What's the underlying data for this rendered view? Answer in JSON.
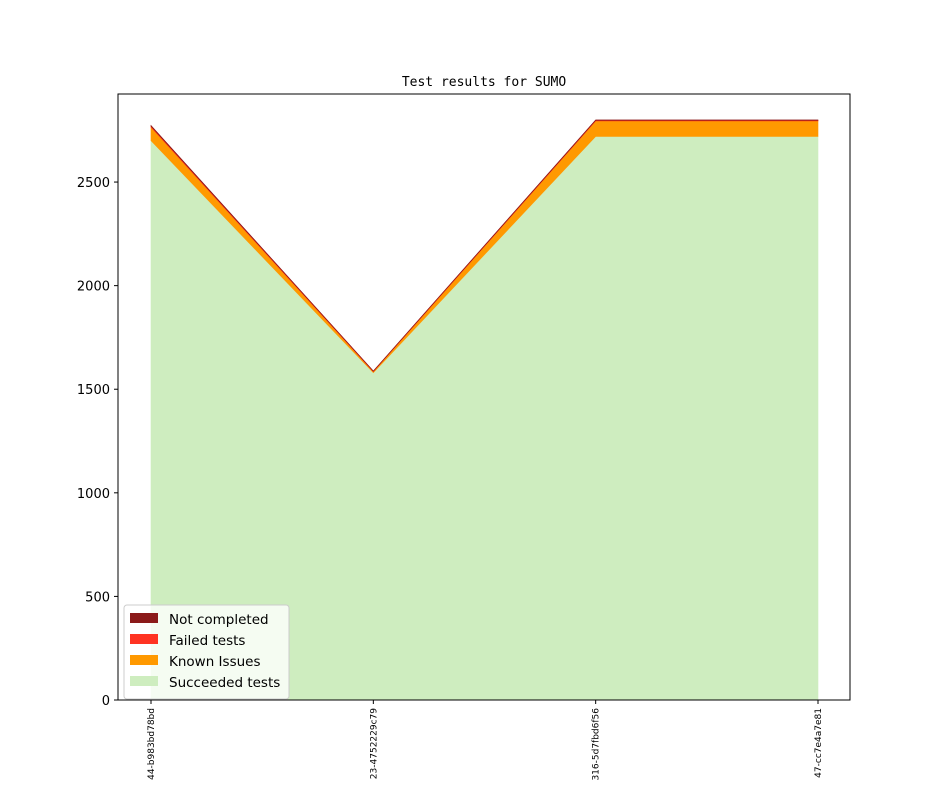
{
  "chart_data": {
    "type": "area",
    "title": "Test results for SUMO",
    "xlabel": "",
    "ylabel": "",
    "ylim": [
      0,
      2925
    ],
    "yticks": [
      0,
      500,
      1000,
      1500,
      2000,
      2500
    ],
    "categories": [
      "44-b983bd78bd",
      "23-4752229c79",
      "316-5d7fbd6f56",
      "47-cc7e4a7e81"
    ],
    "stacked": true,
    "series": [
      {
        "name": "Succeeded tests",
        "color": "#ceedbf",
        "values": [
          2700,
          1580,
          2720,
          2720
        ]
      },
      {
        "name": "Known Issues",
        "color": "#ff9900",
        "values": [
          65,
          5,
          75,
          75
        ]
      },
      {
        "name": "Failed tests",
        "color": "#ff3322",
        "values": [
          5,
          2,
          3,
          3
        ]
      },
      {
        "name": "Not completed",
        "color": "#8b1a1a",
        "values": [
          3,
          1,
          2,
          2
        ]
      }
    ],
    "legend": {
      "placement": "lower-left",
      "entries": [
        "Not completed",
        "Failed tests",
        "Known Issues",
        "Succeeded tests"
      ]
    },
    "grid": false
  }
}
